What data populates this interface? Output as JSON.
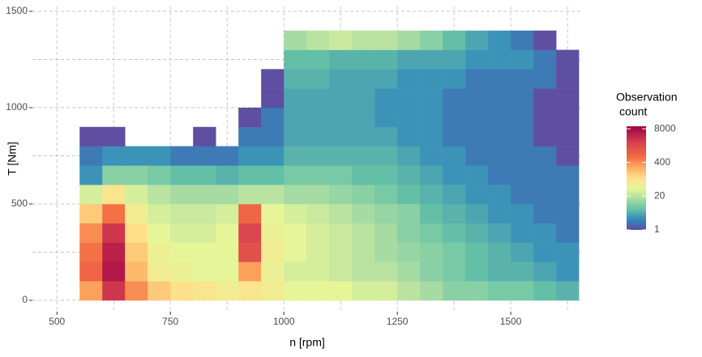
{
  "chart_data": {
    "type": "heatmap",
    "x_label": "n [rpm]",
    "y_label": "T [Nm]",
    "legend_title": [
      "Observation",
      "count"
    ],
    "xlim": [
      446,
      1657
    ],
    "ylim": [
      -59,
      1525
    ],
    "xticks": [
      500,
      750,
      1000,
      1250,
      1500
    ],
    "yticks": [
      0,
      500,
      1000,
      1500
    ],
    "xminor": [
      625,
      875,
      1125,
      1375,
      1625
    ],
    "yminor": [
      250,
      750,
      1250
    ],
    "grid": true,
    "log_color": true,
    "color_lim": [
      1,
      10000
    ],
    "color_ticks": [
      1,
      20,
      400,
      8000
    ],
    "colorscale": [
      [
        0,
        "#5e4fa2"
      ],
      [
        0.1,
        "#3288bd"
      ],
      [
        0.2,
        "#66c2a5"
      ],
      [
        0.3,
        "#abdda4"
      ],
      [
        0.4,
        "#e6f598"
      ],
      [
        0.5,
        "#fee08b"
      ],
      [
        0.6,
        "#fdae61"
      ],
      [
        0.7,
        "#f46d43"
      ],
      [
        0.85,
        "#d53e4f"
      ],
      [
        1,
        "#9e0142"
      ]
    ],
    "xbins": [
      550,
      600,
      650,
      700,
      750,
      800,
      850,
      900,
      950,
      1000,
      1050,
      1100,
      1150,
      1200,
      1250,
      1300,
      1350,
      1400,
      1450,
      1500,
      1550,
      1600,
      1650
    ],
    "ybins": [
      0,
      100,
      200,
      300,
      400,
      500,
      600,
      700,
      800,
      900,
      1000,
      1100,
      1200,
      1300,
      1400
    ],
    "counts": [
      [
        300,
        3000,
        400,
        150,
        100,
        80,
        60,
        80,
        60,
        40,
        40,
        40,
        30,
        30,
        20,
        15,
        10,
        10,
        8,
        8,
        6,
        5
      ],
      [
        800,
        6000,
        200,
        60,
        50,
        40,
        40,
        300,
        50,
        30,
        30,
        25,
        20,
        20,
        15,
        10,
        8,
        6,
        5,
        5,
        4,
        3
      ],
      [
        600,
        5000,
        150,
        50,
        40,
        40,
        40,
        1500,
        60,
        40,
        30,
        25,
        20,
        15,
        12,
        10,
        8,
        6,
        5,
        4,
        3,
        3
      ],
      [
        400,
        3000,
        100,
        40,
        30,
        30,
        40,
        2000,
        50,
        40,
        30,
        25,
        20,
        15,
        10,
        8,
        6,
        5,
        4,
        3,
        3,
        2
      ],
      [
        150,
        600,
        60,
        30,
        25,
        25,
        30,
        800,
        40,
        30,
        25,
        20,
        15,
        12,
        10,
        6,
        5,
        4,
        3,
        3,
        2,
        2
      ],
      [
        30,
        80,
        30,
        20,
        15,
        15,
        15,
        20,
        20,
        15,
        15,
        12,
        10,
        8,
        6,
        5,
        4,
        3,
        3,
        2,
        2,
        2
      ],
      [
        3,
        10,
        10,
        8,
        6,
        6,
        5,
        6,
        6,
        8,
        8,
        8,
        6,
        6,
        5,
        4,
        3,
        3,
        2,
        2,
        2,
        2
      ],
      [
        2,
        3,
        3,
        3,
        2,
        2,
        2,
        3,
        3,
        5,
        5,
        5,
        5,
        5,
        4,
        3,
        3,
        2,
        2,
        2,
        2,
        1
      ],
      [
        1,
        1,
        null,
        null,
        null,
        1,
        null,
        2,
        2,
        4,
        4,
        4,
        4,
        4,
        3,
        3,
        2,
        2,
        2,
        2,
        1,
        1
      ],
      [
        null,
        null,
        null,
        null,
        null,
        null,
        null,
        1,
        2,
        4,
        4,
        4,
        4,
        3,
        3,
        3,
        2,
        2,
        2,
        2,
        1,
        1
      ],
      [
        null,
        null,
        null,
        null,
        null,
        null,
        null,
        null,
        1,
        4,
        4,
        4,
        4,
        3,
        3,
        3,
        2,
        2,
        2,
        2,
        1,
        1
      ],
      [
        null,
        null,
        null,
        null,
        null,
        null,
        null,
        null,
        1,
        5,
        5,
        4,
        4,
        4,
        3,
        3,
        3,
        2,
        2,
        2,
        2,
        1
      ],
      [
        null,
        null,
        null,
        null,
        null,
        null,
        null,
        null,
        null,
        6,
        6,
        5,
        5,
        5,
        4,
        4,
        4,
        3,
        3,
        3,
        2,
        1
      ],
      [
        null,
        null,
        null,
        null,
        null,
        null,
        null,
        null,
        null,
        15,
        20,
        25,
        20,
        20,
        15,
        10,
        6,
        4,
        3,
        2,
        1,
        null
      ]
    ]
  }
}
